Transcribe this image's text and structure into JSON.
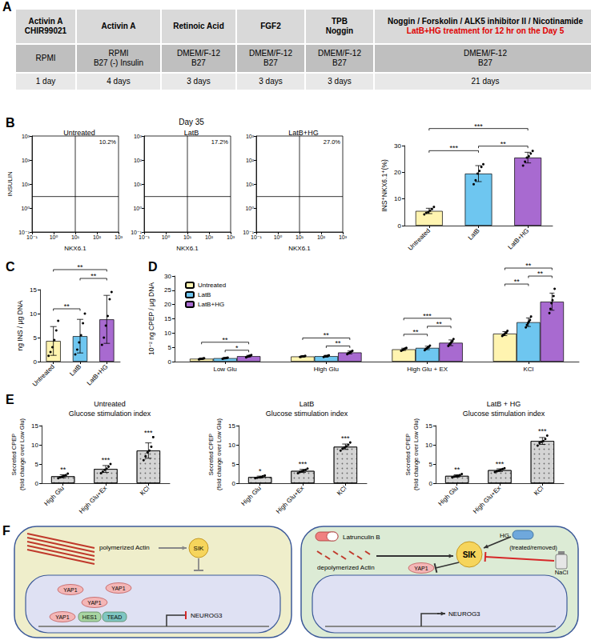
{
  "table": {
    "letter": "A",
    "rows": [
      [
        [
          "Activin A",
          "CHIR99021"
        ],
        [
          "Activin A"
        ],
        [
          "Retinoic Acid"
        ],
        [
          "FGF2"
        ],
        [
          "TPB",
          "Noggin"
        ],
        [
          "Noggin / Forskolin / ALK5 inhibitor II / Nicotinamide"
        ]
      ],
      [
        [
          "RPMI"
        ],
        [
          "RPMI",
          "B27 (-) Insulin"
        ],
        [
          "DMEM/F-12",
          "B27"
        ],
        [
          "DMEM/F-12",
          "B27"
        ],
        [
          "DMEM/F-12",
          "B27"
        ],
        [
          "DMEM/F-12",
          "B27"
        ]
      ],
      [
        [
          "1 day"
        ],
        [
          "4 days"
        ],
        [
          "3 days"
        ],
        [
          "3 days"
        ],
        [
          "3 days"
        ],
        [
          "21 days"
        ]
      ]
    ],
    "note": "LatB+HG treatment for 12 hr on the Day 5",
    "note_color": "#e00000"
  },
  "chart_data": [
    {
      "type": "flow_cytometry",
      "letter": "B",
      "title": "Day 35",
      "xlabel": "NKX6.1",
      "ylabel": "INSULIN",
      "log": true,
      "xlim": [
        0.1,
        1000
      ],
      "ylim": [
        0.1,
        1000
      ],
      "xticks": [
        {
          "value": 0.1,
          "label": "10⁻¹"
        },
        {
          "value": 1,
          "label": "10⁰"
        },
        {
          "value": 10,
          "label": "10¹"
        },
        {
          "value": 100,
          "label": "10²"
        },
        {
          "value": 1000,
          "label": "10³"
        }
      ],
      "yticks": [
        {
          "value": 0.1,
          "label": "10⁻¹"
        },
        {
          "value": 1,
          "label": "10⁰"
        },
        {
          "value": 10,
          "label": "10¹"
        },
        {
          "value": 100,
          "label": "10²"
        },
        {
          "value": 1000,
          "label": "10³"
        }
      ],
      "gate": {
        "x": 10,
        "y": 3
      },
      "plots": [
        {
          "name": "Untreated",
          "quadrant_percent": {
            "value": 10.2,
            "label": "10.2%"
          }
        },
        {
          "name": "LatB",
          "quadrant_percent": {
            "value": 17.2,
            "label": "17.2%"
          }
        },
        {
          "name": "LatB+HG",
          "quadrant_percent": {
            "value": 27.0,
            "label": "27.0%"
          }
        }
      ]
    },
    {
      "type": "bar",
      "ylabel": "INS⁺NKX6.1⁺(%)",
      "categories": [
        "Untreated",
        "LatB",
        "LatB+HG"
      ],
      "values": [
        5.5,
        19.5,
        25.5
      ],
      "errors": [
        1.0,
        3.0,
        2.0
      ],
      "points": [
        [
          4.2,
          4.8,
          5.0,
          5.6,
          6.2,
          7.0
        ],
        [
          15.5,
          17.0,
          19.5,
          20.5,
          22.0,
          23.0
        ],
        [
          22.5,
          24.0,
          25.5,
          26.0,
          27.0,
          28.0
        ]
      ],
      "colors": [
        "#fff4b0",
        "#6ec6f0",
        "#a86ad0"
      ],
      "ylim": [
        0,
        30
      ],
      "yticks": [
        0,
        10,
        20,
        30
      ],
      "significance": [
        {
          "pair": [
            1,
            2
          ],
          "label": "**"
        },
        {
          "pair": [
            0,
            1
          ],
          "label": "***"
        },
        {
          "pair": [
            0,
            2
          ],
          "label": "***"
        }
      ]
    },
    {
      "type": "bar",
      "letter": "C",
      "ylabel": "ng INS / µg DNA",
      "categories": [
        "Untreated",
        "LatB",
        "LatB+HG"
      ],
      "values": [
        4.3,
        5.3,
        8.8
      ],
      "errors": [
        3.0,
        3.5,
        5.0
      ],
      "points": [
        [
          1.2,
          2.0,
          3.0,
          4.5,
          6.5,
          8.5
        ],
        [
          1.5,
          2.5,
          4.0,
          5.5,
          8.0,
          10.0
        ],
        [
          3.5,
          5.0,
          7.5,
          9.5,
          13.0,
          14.5
        ]
      ],
      "colors": [
        "#fff4b0",
        "#6ec6f0",
        "#a86ad0"
      ],
      "ylim": [
        0,
        15
      ],
      "yticks": [
        0,
        5,
        10,
        15
      ],
      "significance": [
        {
          "pair": [
            0,
            1
          ],
          "label": "**"
        },
        {
          "pair": [
            1,
            2
          ],
          "label": "**"
        },
        {
          "pair": [
            0,
            2
          ],
          "label": "**"
        }
      ]
    },
    {
      "type": "bar",
      "letter": "D",
      "ylabel": "10⁻² ng CPEP / µg DNA",
      "categories": [
        "Low Glu",
        "High Glu",
        "High Glu + EX",
        "KCl"
      ],
      "ylim": [
        0,
        30
      ],
      "yticks": [
        0,
        5,
        10,
        15,
        20,
        25,
        30
      ],
      "legend": "top-left",
      "series": [
        {
          "name": "Untreated",
          "color": "#fff4b0",
          "values": [
            1.0,
            1.8,
            4.3,
            9.8
          ],
          "errors": [
            0.2,
            0.2,
            0.4,
            0.7
          ],
          "points": [
            [
              0.8,
              0.9,
              1.0,
              1.0,
              1.1,
              1.2
            ],
            [
              1.6,
              1.7,
              1.8,
              1.8,
              1.9,
              2.0
            ],
            [
              3.8,
              4.0,
              4.2,
              4.4,
              4.6,
              4.8
            ],
            [
              9.0,
              9.3,
              9.6,
              9.9,
              10.2,
              10.8
            ]
          ]
        },
        {
          "name": "LatB",
          "color": "#6ec6f0",
          "values": [
            1.2,
            1.9,
            4.8,
            13.8
          ],
          "errors": [
            0.2,
            0.3,
            0.6,
            1.5
          ],
          "points": [
            [
              1.0,
              1.1,
              1.2,
              1.2,
              1.3,
              1.4
            ],
            [
              1.6,
              1.8,
              1.9,
              1.9,
              2.0,
              2.2
            ],
            [
              4.0,
              4.4,
              4.7,
              4.9,
              5.2,
              5.6
            ],
            [
              12.0,
              12.8,
              13.5,
              14.0,
              14.6,
              15.8
            ]
          ]
        },
        {
          "name": "LatB+HG",
          "color": "#a86ad0",
          "values": [
            1.9,
            3.2,
            6.6,
            21.0
          ],
          "errors": [
            0.3,
            0.5,
            1.0,
            3.0
          ],
          "points": [
            [
              1.5,
              1.7,
              1.8,
              2.0,
              2.1,
              2.3
            ],
            [
              2.6,
              2.9,
              3.1,
              3.3,
              3.5,
              3.8
            ],
            [
              5.5,
              6.0,
              6.4,
              6.8,
              7.2,
              7.9
            ],
            [
              17.0,
              18.5,
              20.5,
              21.5,
              23.0,
              25.5
            ]
          ]
        }
      ],
      "significance": [
        {
          "category": 0,
          "pair": [
            1,
            2
          ],
          "label": "*"
        },
        {
          "category": 0,
          "pair": [
            0,
            2
          ],
          "label": "**"
        },
        {
          "category": 1,
          "pair": [
            1,
            2
          ],
          "label": "**"
        },
        {
          "category": 1,
          "pair": [
            0,
            2
          ],
          "label": "**"
        },
        {
          "category": 2,
          "pair": [
            0,
            1
          ],
          "label": "**"
        },
        {
          "category": 2,
          "pair": [
            1,
            2
          ],
          "label": "**"
        },
        {
          "category": 2,
          "pair": [
            0,
            2
          ],
          "label": "***"
        },
        {
          "category": 3,
          "pair": [
            0,
            1
          ],
          "label": "**"
        },
        {
          "category": 3,
          "pair": [
            1,
            2
          ],
          "label": "**"
        },
        {
          "category": 3,
          "pair": [
            0,
            2
          ],
          "label": "**"
        }
      ]
    },
    {
      "type": "bar",
      "letter": "E",
      "title": "Untreated",
      "subtitle": "Glucose stimulation index",
      "ylabel": [
        "Secreted CPEP",
        "(fold change over Low Glu)"
      ],
      "categories": [
        "High Glu",
        "High Glu+Ex",
        "KCl"
      ],
      "values": [
        1.8,
        3.7,
        8.5
      ],
      "errors": [
        0.4,
        0.9,
        2.0
      ],
      "points": [
        [
          1.3,
          1.5,
          1.7,
          1.9,
          2.1,
          2.5
        ],
        [
          2.6,
          3.0,
          3.5,
          3.8,
          4.3,
          5.0
        ],
        [
          6.0,
          7.0,
          8.0,
          8.5,
          9.5,
          12.0
        ]
      ],
      "color": "#d4d4d4",
      "ylim": [
        0,
        15
      ],
      "yticks": [
        0,
        5,
        10,
        15
      ],
      "stars": [
        "**",
        "***",
        "***"
      ]
    },
    {
      "type": "bar",
      "title": "LatB",
      "subtitle": "Glucose stimulation index",
      "ylabel": [
        "Secreted CPEP",
        "(fold change over Low Glu)"
      ],
      "categories": [
        "High Glu",
        "High Glu+Ex",
        "KCl"
      ],
      "values": [
        1.6,
        3.2,
        9.5
      ],
      "errors": [
        0.25,
        0.4,
        0.7
      ],
      "points": [
        [
          1.3,
          1.4,
          1.5,
          1.6,
          1.8,
          2.0
        ],
        [
          2.6,
          2.9,
          3.1,
          3.3,
          3.5,
          3.8
        ],
        [
          8.5,
          9.0,
          9.3,
          9.6,
          10.0,
          10.6
        ]
      ],
      "color": "#d4d4d4",
      "ylim": [
        0,
        15
      ],
      "yticks": [
        0,
        5,
        10,
        15
      ],
      "stars": [
        "*",
        "***",
        "***"
      ]
    },
    {
      "type": "bar",
      "title": "LatB + HG",
      "subtitle": "Glucose stimulation index",
      "ylabel": [
        "Secreted CPEP",
        "(fold change over Low Glu)"
      ],
      "categories": [
        "High Glu",
        "High Glu+Ex",
        "KCl"
      ],
      "values": [
        1.9,
        3.4,
        11.0
      ],
      "errors": [
        0.3,
        0.35,
        0.9
      ],
      "points": [
        [
          1.5,
          1.7,
          1.8,
          1.9,
          2.1,
          2.4
        ],
        [
          2.9,
          3.1,
          3.3,
          3.5,
          3.7,
          3.9
        ],
        [
          9.8,
          10.5,
          10.8,
          11.0,
          11.5,
          12.4
        ]
      ],
      "color": "#d4d4d4",
      "ylim": [
        0,
        15
      ],
      "yticks": [
        0,
        5,
        10,
        15
      ],
      "stars": [
        "**",
        "***",
        "***"
      ]
    }
  ],
  "diagram": {
    "letter": "F",
    "left_cell": {
      "actin": "polymerized Actin",
      "kinase": "SIK",
      "effector": "YAP1",
      "cofactors": [
        "HES1",
        "TEAD"
      ],
      "gene": "NEUROG3"
    },
    "right_cell": {
      "drug": "Latrunculin B",
      "actin": "depolymerized Actin",
      "treatment": "HG",
      "treatment_note": "(treated/removed)",
      "inhibitor": "NaCl",
      "kinase": "SIK",
      "effector": "YAP1",
      "gene": "NEUROG3"
    }
  }
}
